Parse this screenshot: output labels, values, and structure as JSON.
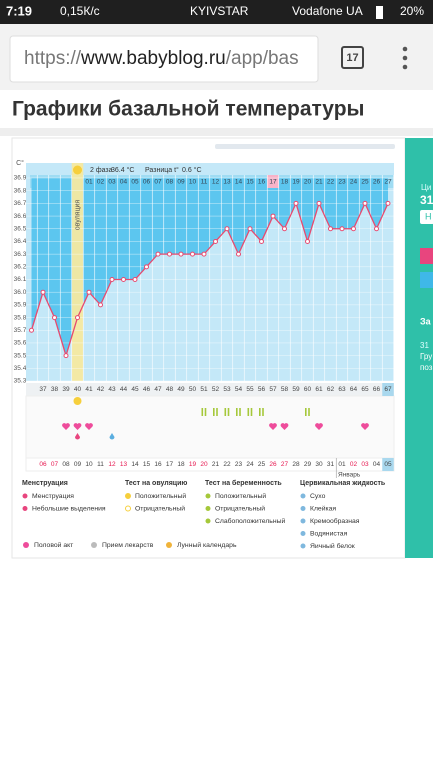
{
  "status": {
    "time": "7:19",
    "speed": "0,15К/с",
    "carrier1": "KYIVSTAR",
    "carrier2": "Vodafone UA",
    "battery": "20%"
  },
  "browser": {
    "url_scheme": "https://",
    "url_host": "www.babyblog.ru",
    "url_path": "/app/bas",
    "tabs": "17"
  },
  "heading": "Графики базальной температуры",
  "chart_data": {
    "type": "line",
    "y_label": "C°",
    "phase_label": "2 фаза",
    "phase_value": "36.4 °C",
    "diff_label": "Разница t°",
    "diff_value": "0.6 °C",
    "ovulation_label": "овуляция",
    "ovulation_index": 4,
    "ovulation_color": "#f6e9a0",
    "highlight_index": 21,
    "highlight_color": "#f7b3c8",
    "categories": [
      null,
      "37",
      "38",
      "39",
      "40",
      "41",
      "42",
      "43",
      "44",
      "45",
      "46",
      "47",
      "48",
      "49",
      "50",
      "51",
      "52",
      "53",
      "54",
      "55",
      "56",
      "57",
      "58",
      "59",
      "60",
      "61",
      "62",
      "63",
      "64",
      "65",
      "66",
      "67"
    ],
    "cycle_days": [
      null,
      null,
      null,
      null,
      null,
      "01",
      "02",
      "03",
      "04",
      "05",
      "06",
      "07",
      "08",
      "09",
      "10",
      "11",
      "12",
      "13",
      "14",
      "15",
      "16",
      "17",
      "18",
      "19",
      "20",
      "21",
      "22",
      "23",
      "24",
      "25",
      "26",
      "27"
    ],
    "dates": [
      null,
      "06",
      "07",
      "08",
      "09",
      "10",
      "11",
      "12",
      "13",
      "14",
      "15",
      "16",
      "17",
      "18",
      "19",
      "20",
      "21",
      "22",
      "23",
      "24",
      "25",
      "26",
      "27",
      "28",
      "29",
      "30",
      "31",
      "01",
      "02",
      "03",
      "04",
      "05"
    ],
    "weekend_indices": [
      1,
      2,
      7,
      8,
      14,
      15,
      21,
      22,
      28,
      29
    ],
    "weekend_color": "#e6174f",
    "month_label": "Январь",
    "month_index": 27,
    "series": [
      {
        "name": "Базальная температура",
        "color": "#e84a6f",
        "values": [
          35.7,
          36.0,
          35.8,
          35.5,
          35.8,
          36.0,
          35.9,
          36.1,
          36.1,
          36.1,
          36.2,
          36.3,
          36.3,
          36.3,
          36.3,
          36.3,
          36.4,
          36.5,
          36.3,
          36.5,
          36.4,
          36.6,
          36.5,
          36.7,
          36.4,
          36.7,
          36.5,
          36.5,
          36.5,
          36.7,
          36.5,
          36.7
        ]
      }
    ],
    "ylim": [
      35.3,
      36.9
    ],
    "yticks": [
      36.9,
      36.8,
      36.7,
      36.6,
      36.5,
      36.4,
      36.3,
      36.2,
      36.1,
      {
        "value": 36,
        "label": "36.0"
      },
      35.9,
      35.8,
      35.7,
      35.6,
      35.5,
      35.4,
      35.3
    ],
    "grid": true
  },
  "legend": {
    "menstruation": {
      "title": "Менструация",
      "items": [
        "Менструация",
        "Небольшие выделения"
      ]
    },
    "ovulation_test": {
      "title": "Тест на овуляцию",
      "items": [
        "Положительный",
        "Отрицательный"
      ]
    },
    "pregnancy_test": {
      "title": "Тест на беременность",
      "items": [
        "Положительный",
        "Отрицательный",
        "Слабоположительный"
      ]
    },
    "cervical": {
      "title": "Цервикальная жидкость",
      "items": [
        "Сухо",
        "Клейкая",
        "Кремообразная",
        "Водянистая",
        "Яичный белок"
      ]
    },
    "other": [
      "Половой акт",
      "Прием лекарств",
      "Лунный календарь"
    ]
  },
  "side_panel": {
    "label1": "Ци",
    "number1": "31",
    "button": "Н",
    "title2": "За",
    "number2": "31",
    "text1": "Гру",
    "text2": "поз"
  }
}
